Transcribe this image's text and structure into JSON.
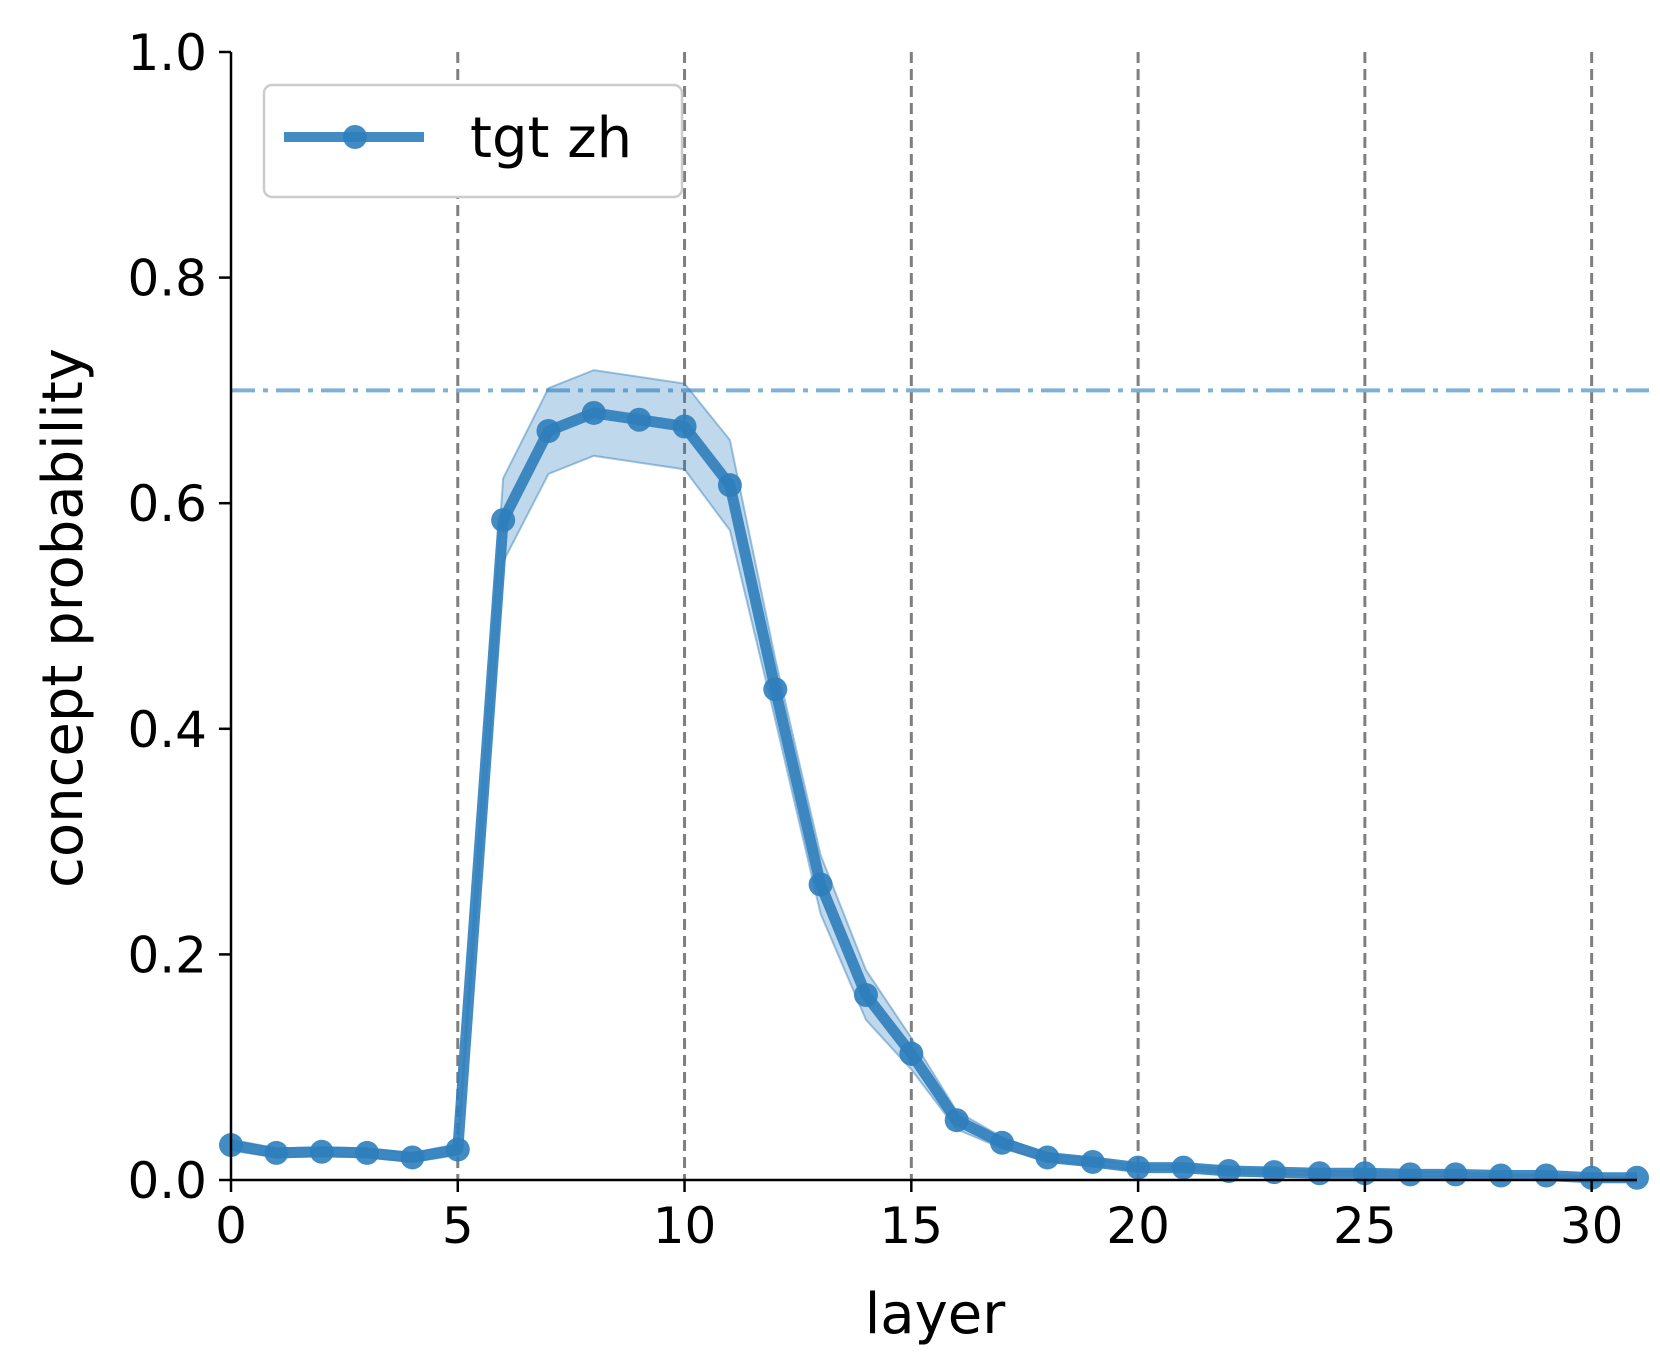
{
  "chart_data": {
    "type": "line",
    "xlabel": "layer",
    "ylabel": "concept probability",
    "xlim": [
      0,
      31
    ],
    "ylim": [
      0,
      1.0
    ],
    "xticks": [
      0,
      5,
      10,
      15,
      20,
      25,
      30
    ],
    "xtick_labels": [
      "0",
      "5",
      "10",
      "15",
      "20",
      "25",
      "30"
    ],
    "yticks": [
      0.0,
      0.2,
      0.4,
      0.6,
      0.8,
      1.0
    ],
    "ytick_labels": [
      "0.0",
      "0.2",
      "0.4",
      "0.6",
      "0.8",
      "1.0"
    ],
    "vertical_reference_lines": [
      5,
      10,
      15,
      20,
      25,
      30
    ],
    "horizontal_reference_line": 0.7,
    "legend_position": "top-left",
    "grid": false,
    "series": [
      {
        "name": "tgt zh",
        "color": "#2f7ebc",
        "x": [
          0,
          1,
          2,
          3,
          4,
          5,
          6,
          7,
          8,
          9,
          10,
          11,
          12,
          13,
          14,
          15,
          16,
          17,
          18,
          19,
          20,
          21,
          22,
          23,
          24,
          25,
          26,
          27,
          28,
          29,
          30,
          31
        ],
        "values": [
          0.031,
          0.024,
          0.025,
          0.024,
          0.02,
          0.027,
          0.585,
          0.664,
          0.68,
          0.674,
          0.668,
          0.616,
          0.435,
          0.262,
          0.164,
          0.112,
          0.053,
          0.033,
          0.02,
          0.016,
          0.011,
          0.011,
          0.008,
          0.007,
          0.006,
          0.006,
          0.005,
          0.005,
          0.004,
          0.004,
          0.002,
          0.002
        ],
        "lower": [
          0.026,
          0.02,
          0.021,
          0.02,
          0.016,
          0.022,
          0.548,
          0.626,
          0.642,
          0.636,
          0.63,
          0.576,
          0.408,
          0.236,
          0.142,
          0.098,
          0.045,
          0.028,
          0.017,
          0.013,
          0.009,
          0.009,
          0.006,
          0.005,
          0.004,
          0.004,
          0.003,
          0.003,
          0.003,
          0.003,
          0.001,
          0.001
        ],
        "upper": [
          0.036,
          0.028,
          0.029,
          0.028,
          0.024,
          0.032,
          0.622,
          0.702,
          0.718,
          0.712,
          0.706,
          0.656,
          0.462,
          0.288,
          0.186,
          0.126,
          0.061,
          0.038,
          0.023,
          0.019,
          0.013,
          0.013,
          0.01,
          0.009,
          0.008,
          0.008,
          0.007,
          0.007,
          0.005,
          0.005,
          0.003,
          0.003
        ]
      }
    ]
  }
}
